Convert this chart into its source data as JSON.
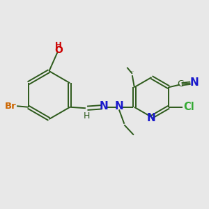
{
  "background_color": "#e8e8e8",
  "bond_color": "#2d5a1b",
  "figsize": [
    3.0,
    3.0
  ],
  "dpi": 100,
  "xlim": [
    0.0,
    1.0
  ],
  "ylim": [
    0.0,
    1.0
  ],
  "lw": 1.4,
  "colors": {
    "bond": "#2d5a1b",
    "N": "#1a1acc",
    "Br": "#cc6600",
    "O": "#cc0000",
    "Cl": "#33aa33",
    "C": "#2d5a1b"
  }
}
